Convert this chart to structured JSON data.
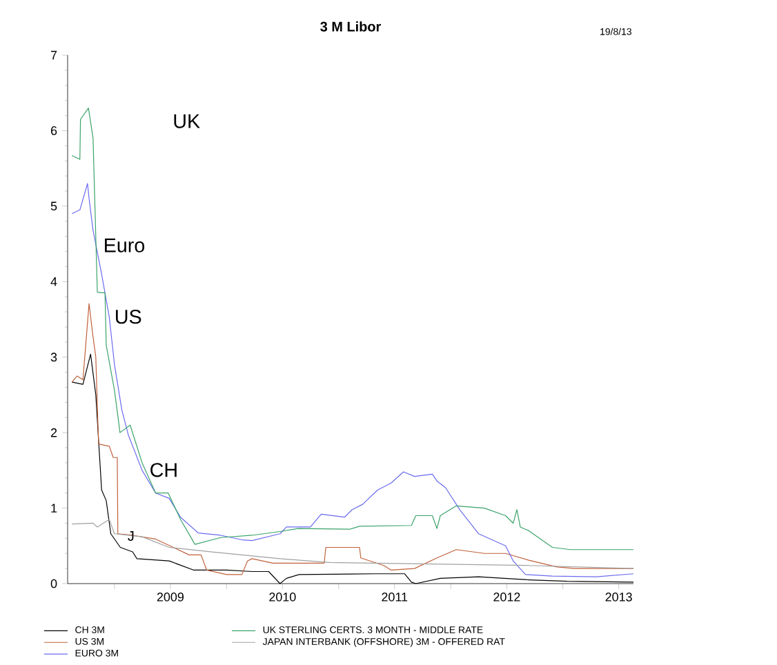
{
  "chart_data": {
    "type": "line",
    "title": "3 M Libor",
    "annotations": [
      "19/8/13",
      "UK",
      "Euro",
      "US",
      "CH",
      "J"
    ],
    "xlim": [
      "2008-08-01",
      "2013-08-19"
    ],
    "xticks": [
      {
        "value": "2009-01-01",
        "label": null
      },
      {
        "value": "2009-07-02",
        "label": "2009"
      },
      {
        "value": "2010-01-01",
        "label": null
      },
      {
        "value": "2010-07-02",
        "label": "2010"
      },
      {
        "value": "2011-01-01",
        "label": null
      },
      {
        "value": "2011-07-02",
        "label": "2011"
      },
      {
        "value": "2012-01-01",
        "label": null
      },
      {
        "value": "2012-07-02",
        "label": "2012"
      },
      {
        "value": "2013-01-01",
        "label": null
      },
      {
        "value": "2013-07-02",
        "label": "2013"
      }
    ],
    "ylim": [
      0,
      7
    ],
    "yticks": [
      0,
      1,
      2,
      3,
      4,
      5,
      6,
      7
    ],
    "legend": "bottom",
    "grid": false,
    "marker": "none",
    "line_style": "solid",
    "series": [
      {
        "name": "CH 3M",
        "color": "#000000",
        "x": [
          "2008-08-15",
          "2008-09-20",
          "2008-10-15",
          "2008-11-01",
          "2008-11-20",
          "2008-12-05",
          "2008-12-20",
          "2009-01-20",
          "2009-03-01",
          "2009-03-15",
          "2009-06-28",
          "2009-09-15",
          "2010-01-01",
          "2010-03-25",
          "2010-05-18",
          "2010-06-24",
          "2010-07-15",
          "2010-08-25",
          "2011-05-01",
          "2011-08-04",
          "2011-08-26",
          "2011-09-09",
          "2011-11-28",
          "2012-04-01",
          "2012-09-12",
          "2013-01-15",
          "2013-08-19"
        ],
        "values": [
          2.67,
          2.64,
          3.04,
          2.5,
          1.24,
          1.1,
          0.66,
          0.48,
          0.42,
          0.33,
          0.3,
          0.18,
          0.18,
          0.16,
          0.16,
          0.0,
          0.07,
          0.12,
          0.13,
          0.13,
          0.02,
          0.0,
          0.07,
          0.09,
          0.05,
          0.03,
          0.02
        ]
      },
      {
        "name": "US 3M",
        "color": "#c0603a",
        "x": [
          "2008-08-15",
          "2008-09-01",
          "2008-09-20",
          "2008-10-10",
          "2008-10-22",
          "2008-11-01",
          "2008-11-10",
          "2008-12-15",
          "2008-12-28",
          "2009-01-10",
          "2009-01-12",
          "2009-03-01",
          "2009-05-15",
          "2009-09-01",
          "2009-10-10",
          "2009-10-28",
          "2010-01-01",
          "2010-02-20",
          "2010-03-10",
          "2010-03-25",
          "2010-06-01",
          "2010-11-15",
          "2010-11-20",
          "2011-03-10",
          "2011-03-14",
          "2011-05-28",
          "2011-06-20",
          "2011-09-05",
          "2011-11-17",
          "2012-01-19",
          "2012-04-20",
          "2012-06-28",
          "2012-09-12",
          "2012-12-13",
          "2013-02-10",
          "2013-08-19"
        ],
        "values": [
          2.67,
          2.75,
          2.7,
          3.71,
          3.3,
          3.0,
          1.85,
          1.82,
          1.67,
          1.67,
          0.66,
          0.64,
          0.59,
          0.38,
          0.38,
          0.18,
          0.12,
          0.12,
          0.3,
          0.33,
          0.27,
          0.27,
          0.48,
          0.48,
          0.34,
          0.24,
          0.18,
          0.2,
          0.34,
          0.45,
          0.4,
          0.4,
          0.31,
          0.22,
          0.2,
          0.2
        ]
      },
      {
        "name": "EURO 3M",
        "color": "#6a6af0",
        "x": [
          "2008-08-15",
          "2008-09-10",
          "2008-10-05",
          "2008-10-10",
          "2008-10-23",
          "2008-11-20",
          "2008-12-15",
          "2009-01-01",
          "2009-01-25",
          "2009-02-15",
          "2009-04-01",
          "2009-05-15",
          "2009-06-28",
          "2009-08-04",
          "2009-10-01",
          "2009-12-13",
          "2010-02-20",
          "2010-03-25",
          "2010-06-24",
          "2010-07-15",
          "2010-10-01",
          "2010-11-05",
          "2011-01-20",
          "2011-02-14",
          "2011-03-20",
          "2011-05-08",
          "2011-06-20",
          "2011-07-31",
          "2011-09-05",
          "2011-11-02",
          "2011-11-17",
          "2011-12-15",
          "2012-02-01",
          "2012-04-01",
          "2012-06-28",
          "2012-07-23",
          "2012-09-01",
          "2012-11-28",
          "2013-04-20",
          "2013-08-19"
        ],
        "values": [
          4.9,
          4.95,
          5.3,
          5.1,
          4.68,
          4.1,
          3.53,
          2.9,
          2.3,
          1.97,
          1.5,
          1.2,
          1.13,
          0.88,
          0.67,
          0.64,
          0.58,
          0.57,
          0.66,
          0.75,
          0.75,
          0.92,
          0.88,
          0.98,
          1.05,
          1.24,
          1.33,
          1.48,
          1.42,
          1.45,
          1.36,
          1.27,
          0.97,
          0.66,
          0.5,
          0.3,
          0.12,
          0.1,
          0.09,
          0.13
        ]
      },
      {
        "name": "UK STERLING CERTS. 3 MONTH - MIDDLE RATE",
        "color": "#3aa36a",
        "x": [
          "2008-08-15",
          "2008-09-10",
          "2008-09-12",
          "2008-10-08",
          "2008-10-23",
          "2008-11-06",
          "2008-12-01",
          "2008-12-05",
          "2009-01-01",
          "2009-01-19",
          "2009-02-21",
          "2009-04-01",
          "2009-05-15",
          "2009-06-25",
          "2009-08-04",
          "2009-09-20",
          "2009-12-13",
          "2010-03-25",
          "2010-06-24",
          "2010-08-22",
          "2011-02-06",
          "2011-03-10",
          "2011-08-26",
          "2011-09-09",
          "2011-11-02",
          "2011-11-17",
          "2011-11-28",
          "2012-01-19",
          "2012-04-20",
          "2012-06-28",
          "2012-07-23",
          "2012-08-04",
          "2012-08-15",
          "2012-09-12",
          "2012-11-28",
          "2013-01-26",
          "2013-08-19"
        ],
        "values": [
          5.67,
          5.62,
          6.15,
          6.3,
          5.9,
          3.86,
          3.85,
          3.16,
          2.56,
          2.0,
          2.1,
          1.6,
          1.2,
          1.2,
          0.85,
          0.52,
          0.61,
          0.64,
          0.69,
          0.73,
          0.72,
          0.76,
          0.77,
          0.9,
          0.9,
          0.73,
          0.9,
          1.03,
          1.0,
          0.9,
          0.8,
          0.98,
          0.75,
          0.7,
          0.48,
          0.45,
          0.45
        ]
      },
      {
        "name": "JAPAN INTERBANK (OFFSHORE) 3M - OFFERED RAT",
        "color": "#a0a0a0",
        "x": [
          "2008-08-15",
          "2008-10-23",
          "2008-11-06",
          "2008-12-15",
          "2009-01-01",
          "2009-04-01",
          "2009-06-28",
          "2009-11-15",
          "2010-06-24",
          "2010-12-01",
          "2012-09-12",
          "2013-08-19"
        ],
        "values": [
          0.79,
          0.8,
          0.75,
          0.85,
          0.66,
          0.62,
          0.48,
          0.42,
          0.33,
          0.28,
          0.24,
          0.2
        ]
      }
    ]
  }
}
